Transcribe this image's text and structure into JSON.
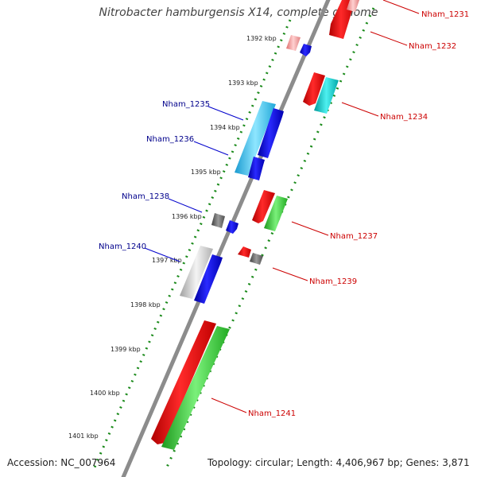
{
  "title": "Nitrobacter hamburgensis X14, complete genome",
  "footer": {
    "accession": "Accession: NC_007964",
    "topology": "Topology: circular; Length: 4,406,967 bp; Genes: 3,871"
  },
  "colors": {
    "forward_label": "#cc0000",
    "reverse_label": "#00008b",
    "tick": "#008000",
    "backbone": "#888888"
  },
  "kbp_ticks": [
    "1392 kbp",
    "1393 kbp",
    "1394 kbp",
    "1395 kbp",
    "1396 kbp",
    "1397 kbp",
    "1398 kbp",
    "1399 kbp",
    "1400 kbp",
    "1401 kbp"
  ],
  "genes": [
    {
      "id": "Nham_1231",
      "strand": "forward",
      "color": "red"
    },
    {
      "id": "Nham_1232",
      "strand": "forward",
      "color": "pink"
    },
    {
      "id": "Nham_1234",
      "strand": "forward",
      "color": "red+cyan"
    },
    {
      "id": "Nham_1235",
      "strand": "reverse",
      "color": "cyan"
    },
    {
      "id": "Nham_1236",
      "strand": "reverse",
      "color": "blue"
    },
    {
      "id": "Nham_1237",
      "strand": "forward",
      "color": "red+green"
    },
    {
      "id": "Nham_1238",
      "strand": "reverse",
      "color": "gray"
    },
    {
      "id": "Nham_1239",
      "strand": "forward",
      "color": "red+gray"
    },
    {
      "id": "Nham_1240",
      "strand": "reverse",
      "color": "silver"
    },
    {
      "id": "Nham_1241",
      "strand": "forward",
      "color": "red+green"
    }
  ]
}
